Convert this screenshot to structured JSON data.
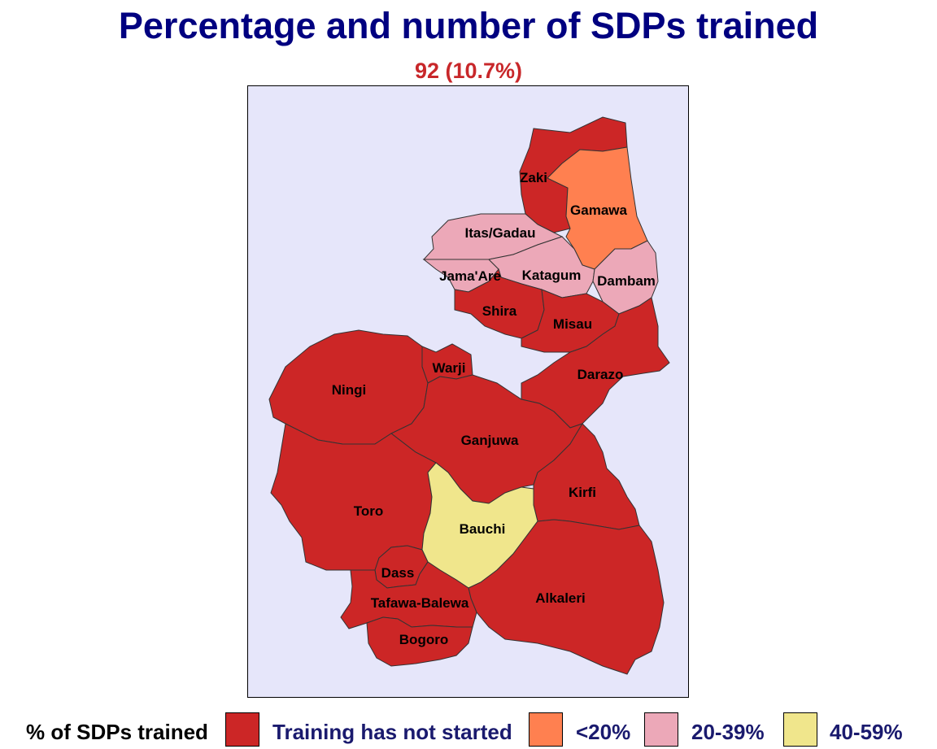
{
  "title": "Percentage and number of SDPs trained",
  "subtitle": "92 (10.7%)",
  "colors": {
    "not_started": "#cc2626",
    "lt20": "#ff8050",
    "p20_39": "#eca8b8",
    "p40_59": "#f0e68c",
    "background": "#e6e6fa"
  },
  "lgas": [
    {
      "name": "Zaki",
      "category": "not_started"
    },
    {
      "name": "Gamawa",
      "category": "lt20"
    },
    {
      "name": "Itas/Gadau",
      "category": "p20_39"
    },
    {
      "name": "Jama'Are",
      "category": "p20_39"
    },
    {
      "name": "Katagum",
      "category": "p20_39"
    },
    {
      "name": "Dambam",
      "category": "p20_39"
    },
    {
      "name": "Shira",
      "category": "not_started"
    },
    {
      "name": "Misau",
      "category": "not_started"
    },
    {
      "name": "Warji",
      "category": "not_started"
    },
    {
      "name": "Darazo",
      "category": "not_started"
    },
    {
      "name": "Ningi",
      "category": "not_started"
    },
    {
      "name": "Ganjuwa",
      "category": "not_started"
    },
    {
      "name": "Kirfi",
      "category": "not_started"
    },
    {
      "name": "Toro",
      "category": "not_started"
    },
    {
      "name": "Bauchi",
      "category": "p40_59"
    },
    {
      "name": "Dass",
      "category": "not_started"
    },
    {
      "name": "Alkaleri",
      "category": "not_started"
    },
    {
      "name": "Tafawa-Balewa",
      "category": "not_started"
    },
    {
      "name": "Bogoro",
      "category": "not_started"
    }
  ],
  "legend": {
    "title": "% of SDPs trained",
    "items": [
      {
        "label": "Training has not started",
        "category": "not_started"
      },
      {
        "label": "<20%",
        "category": "lt20"
      },
      {
        "label": "20-39%",
        "category": "p20_39"
      },
      {
        "label": "40-59%",
        "category": "p40_59"
      }
    ]
  }
}
